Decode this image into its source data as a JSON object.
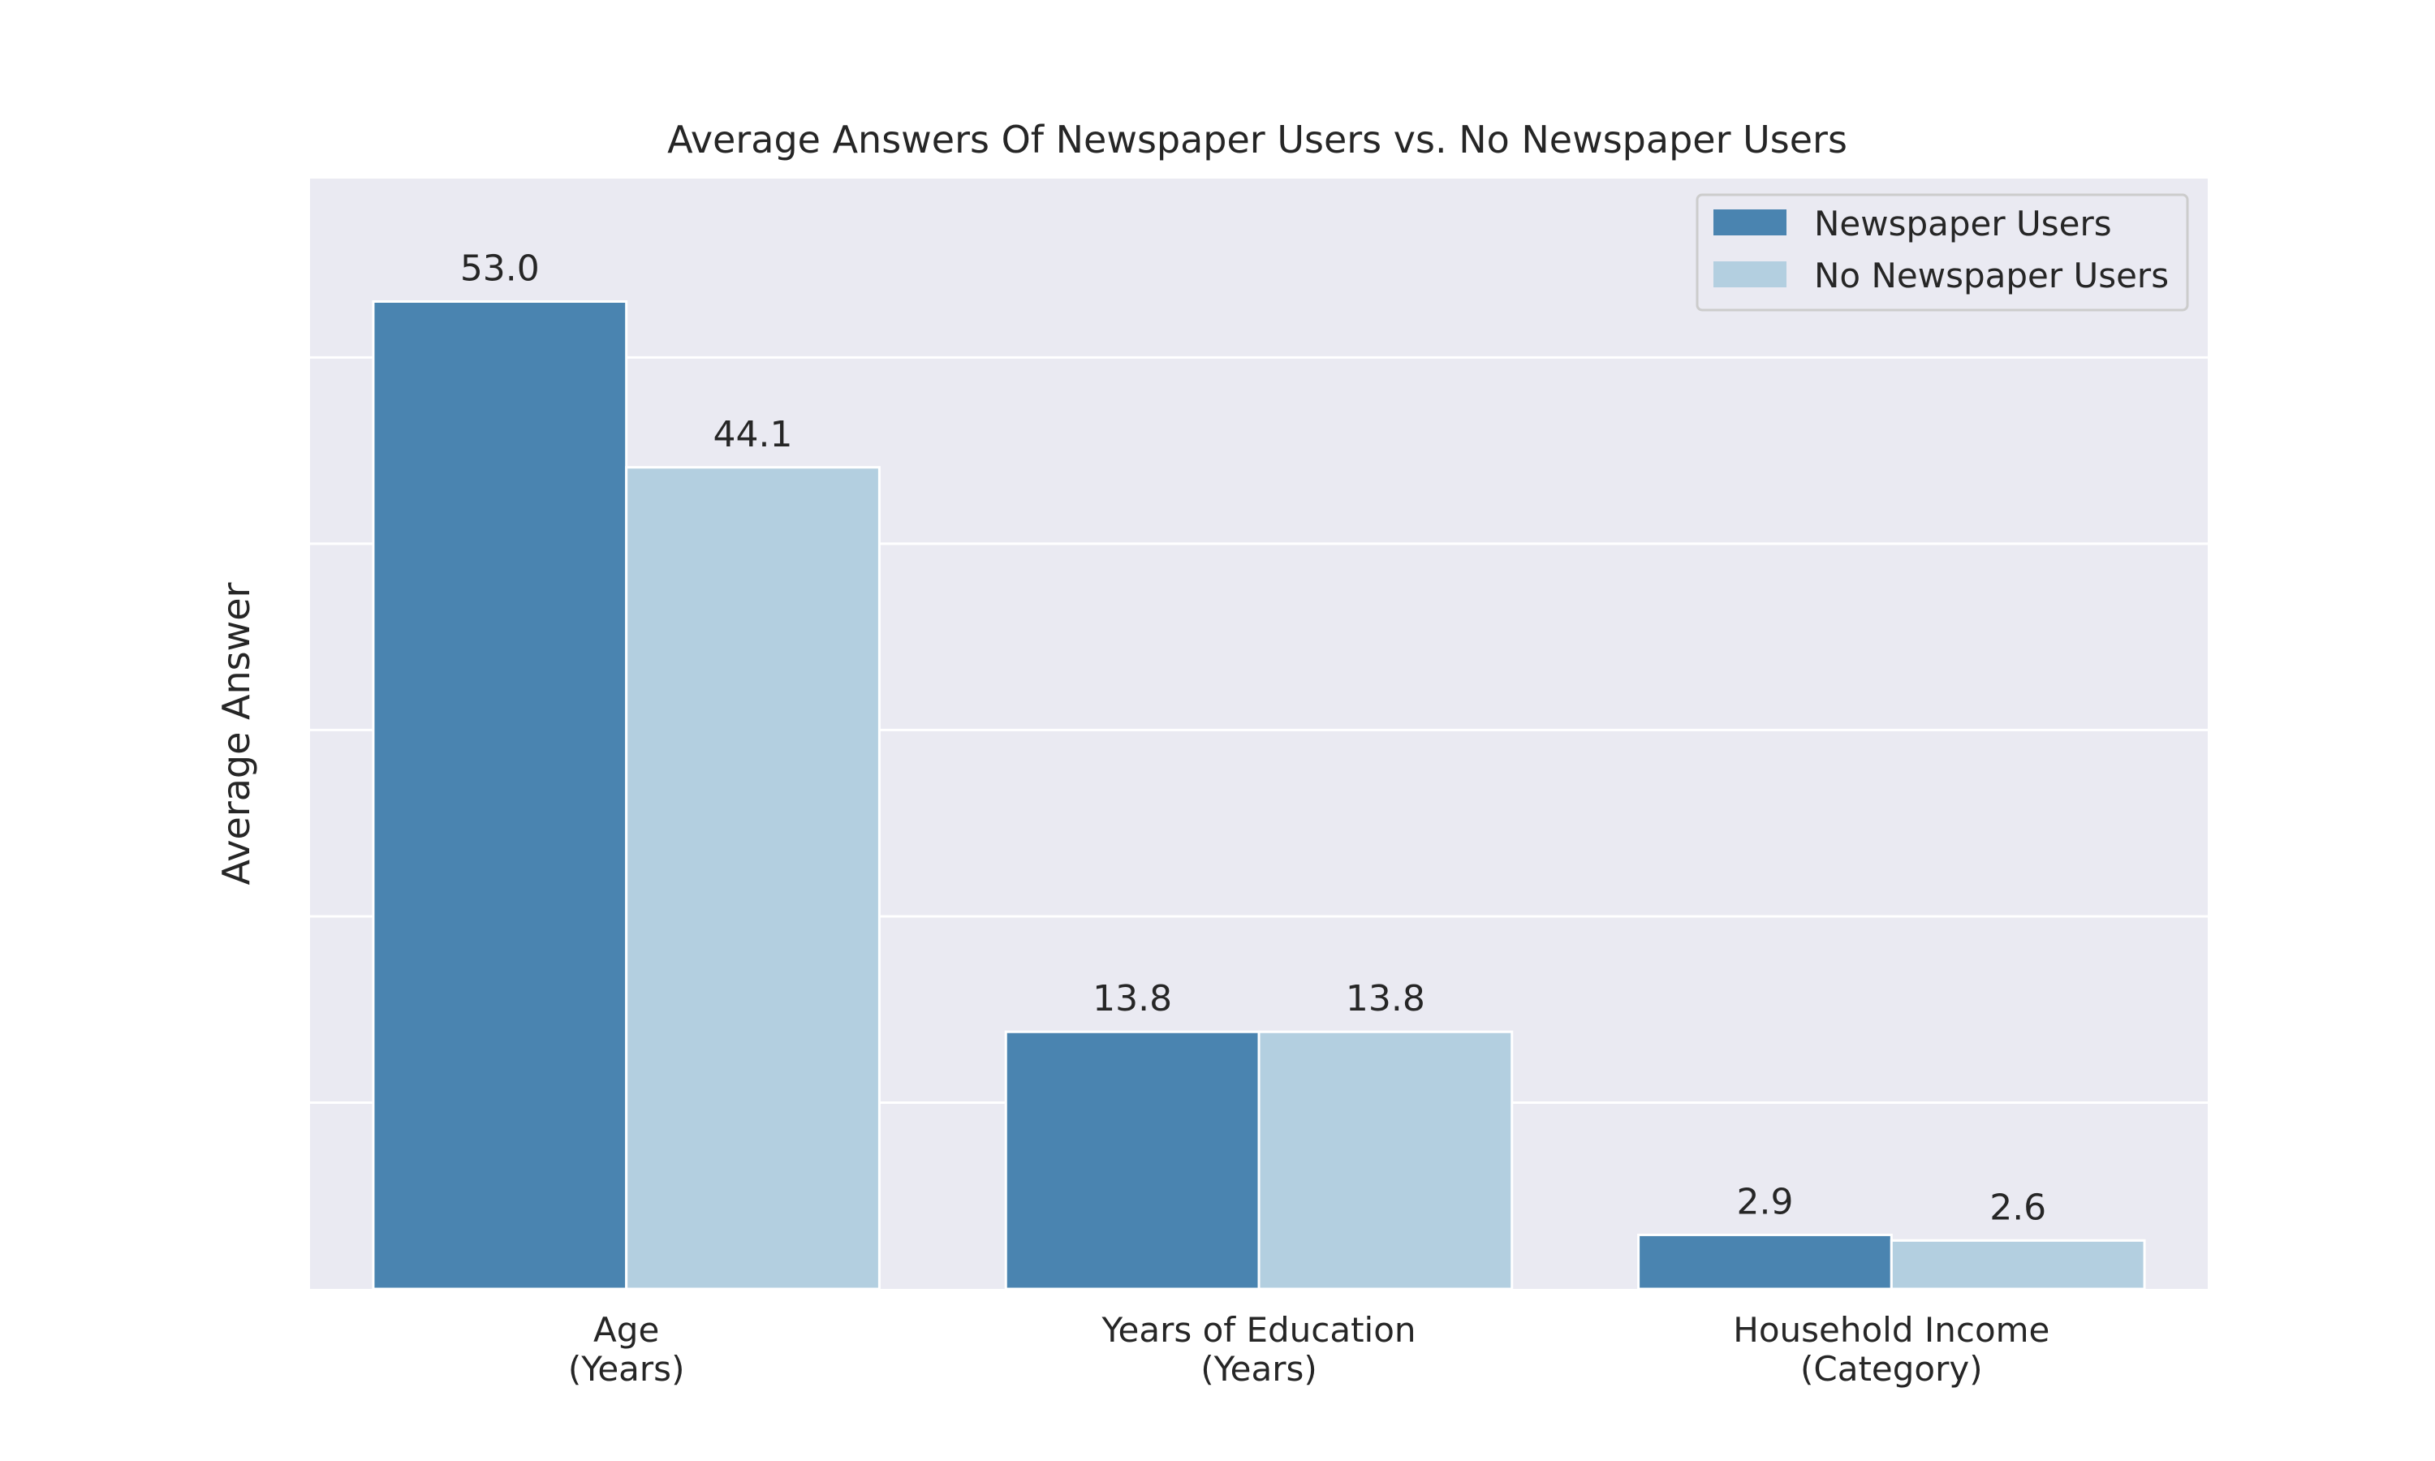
{
  "chart_data": {
    "type": "bar",
    "title": "Average Answers Of Newspaper Users vs. No Newspaper Users",
    "xlabel": "",
    "ylabel": "Average Answer",
    "categories": [
      [
        "Age",
        "(Years)"
      ],
      [
        "Years of Education",
        "(Years)"
      ],
      [
        "Household Income",
        "(Category)"
      ]
    ],
    "series": [
      {
        "name": "Newspaper Users",
        "color": "#4a84b0",
        "values": [
          53.0,
          13.8,
          2.9
        ],
        "labels": [
          "53.0",
          "13.8",
          "2.9"
        ]
      },
      {
        "name": "No Newspaper Users",
        "color": "#b3cfe0",
        "values": [
          44.1,
          13.8,
          2.6
        ],
        "labels": [
          "44.1",
          "13.8",
          "2.6"
        ]
      }
    ],
    "ylim": [
      0,
      59.6
    ],
    "yticks": [
      10,
      20,
      30,
      40,
      50
    ],
    "ytick_labels_visible": false,
    "grid": true,
    "legend_position": "top-right",
    "plot_background": "#eaeaf2"
  }
}
